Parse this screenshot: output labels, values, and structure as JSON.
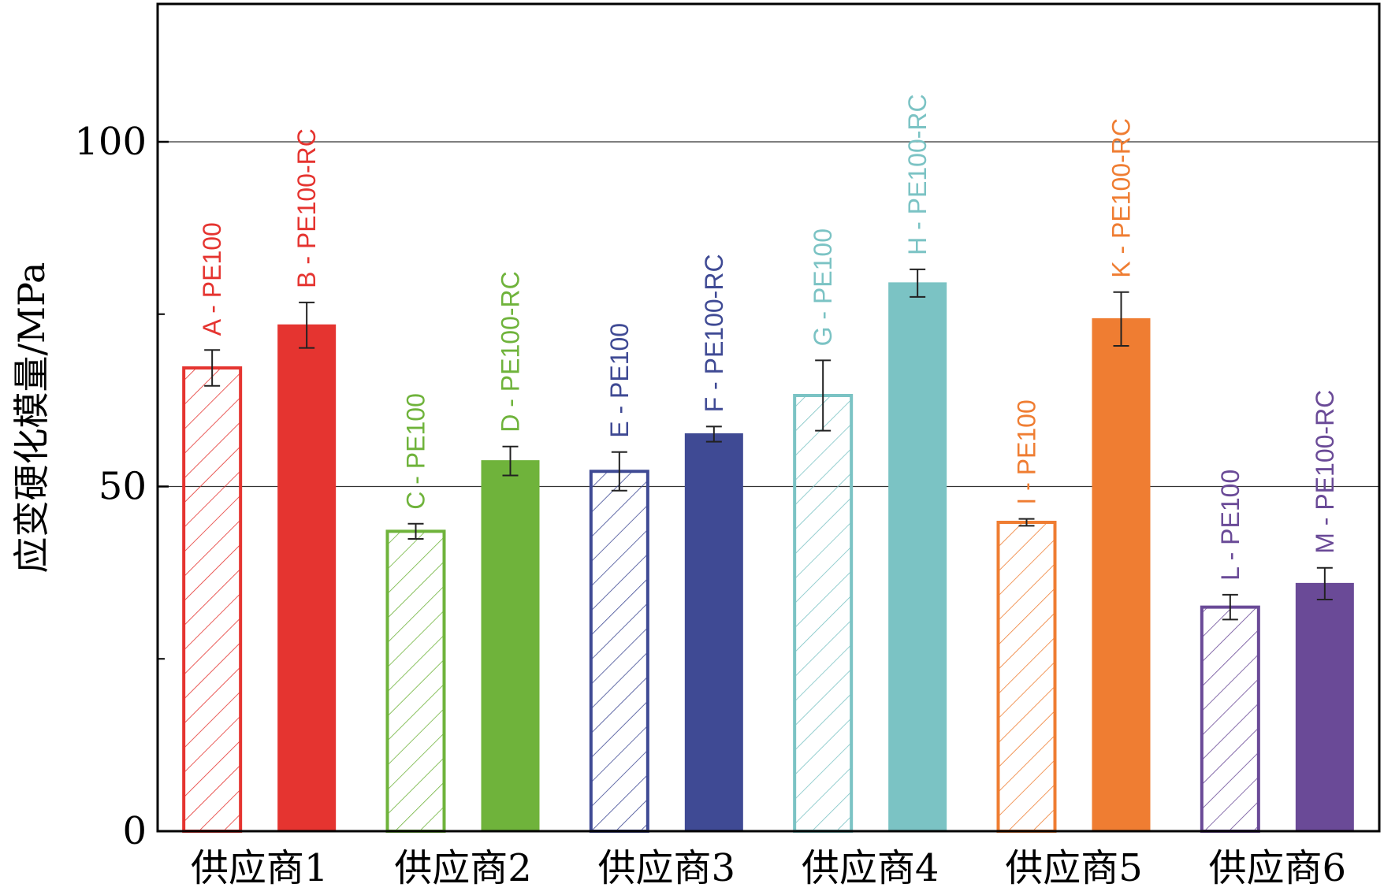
{
  "chart_data": {
    "type": "bar",
    "ylabel": "应变硬化模量/MPa",
    "xlabel": "",
    "ylim": [
      0,
      120
    ],
    "yticks": [
      0,
      50,
      100
    ],
    "minor_yticks": [
      25,
      75
    ],
    "gridlines_at": [
      50,
      100
    ],
    "grid": "horizontal at labeled ticks",
    "categories": [
      "供应商1",
      "供应商2",
      "供应商3",
      "供应商4",
      "供应商5",
      "供应商6"
    ],
    "bars": [
      {
        "label": "A - PE100",
        "group": 0,
        "value": 67.2,
        "error": 2.6,
        "color": "#e53430",
        "fill": "hatched"
      },
      {
        "label": "B - PE100-RC",
        "group": 0,
        "value": 73.4,
        "error": 3.3,
        "color": "#e53430",
        "fill": "solid"
      },
      {
        "label": "C - PE100",
        "group": 1,
        "value": 43.5,
        "error": 1.1,
        "color": "#6fb33b",
        "fill": "hatched"
      },
      {
        "label": "D - PE100-RC",
        "group": 1,
        "value": 53.7,
        "error": 2.1,
        "color": "#6fb33b",
        "fill": "solid"
      },
      {
        "label": "E - PE100",
        "group": 2,
        "value": 52.2,
        "error": 2.8,
        "color": "#3f4a94",
        "fill": "hatched"
      },
      {
        "label": "F - PE100-RC",
        "group": 2,
        "value": 57.6,
        "error": 1.1,
        "color": "#3f4a94",
        "fill": "solid"
      },
      {
        "label": "G - PE100",
        "group": 3,
        "value": 63.2,
        "error": 5.1,
        "color": "#7bc3c4",
        "fill": "hatched"
      },
      {
        "label": "H - PE100-RC",
        "group": 3,
        "value": 79.5,
        "error": 2.0,
        "color": "#7bc3c4",
        "fill": "solid"
      },
      {
        "label": "I - PE100",
        "group": 4,
        "value": 44.8,
        "error": 0.5,
        "color": "#ef7d32",
        "fill": "hatched"
      },
      {
        "label": "K - PE100-RC",
        "group": 4,
        "value": 74.3,
        "error": 3.9,
        "color": "#ef7d32",
        "fill": "solid"
      },
      {
        "label": "L - PE100",
        "group": 5,
        "value": 32.5,
        "error": 1.8,
        "color": "#6a4a97",
        "fill": "hatched"
      },
      {
        "label": "M - PE100-RC",
        "group": 5,
        "value": 35.9,
        "error": 2.3,
        "color": "#6a4a97",
        "fill": "solid"
      }
    ]
  }
}
